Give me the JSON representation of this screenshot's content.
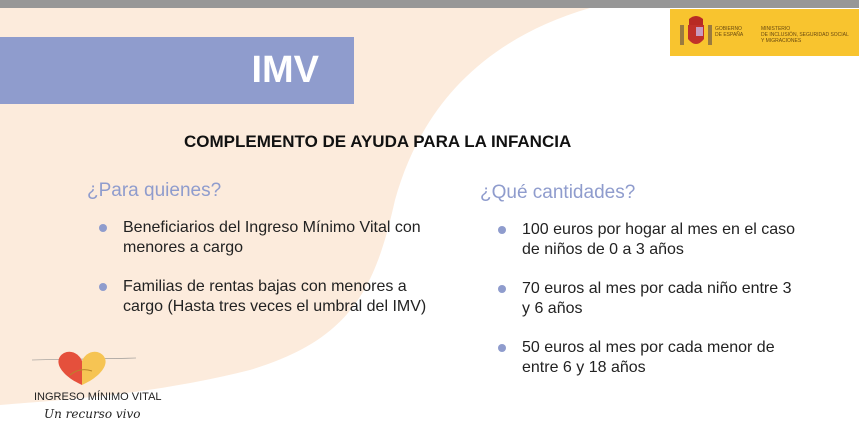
{
  "header": {
    "badge": "IMV"
  },
  "government": {
    "line1": [
      "GOBIERNO",
      "DE ESPAÑA"
    ],
    "line2": [
      "MINISTERIO",
      "DE INCLUSIÓN, SEGURIDAD SOCIAL",
      "Y MIGRACIONES"
    ]
  },
  "title": "COMPLEMENTO DE AYUDA PARA LA INFANCIA",
  "left": {
    "heading": "¿Para quienes?",
    "items": [
      "Beneficiarios del Ingreso Mínimo Vital con menores a cargo",
      "Familias de rentas bajas con menores a cargo (Hasta tres veces el umbral del IMV)"
    ]
  },
  "right": {
    "heading": "¿Qué cantidades?",
    "items": [
      "100 euros por hogar al mes en el caso de niños de 0 a 3 años",
      "70 euros al mes por cada niño entre 3 y 6 años",
      "50 euros al mes por cada menor de entre 6 y 18 años"
    ]
  },
  "logo": {
    "name": "INGRESO MÍNIMO VITAL",
    "tagline": "Un recurso vivo"
  },
  "colors": {
    "accent": "#8f9ccd",
    "background": "#fcebdc",
    "gov_yellow": "#f8c42f"
  }
}
